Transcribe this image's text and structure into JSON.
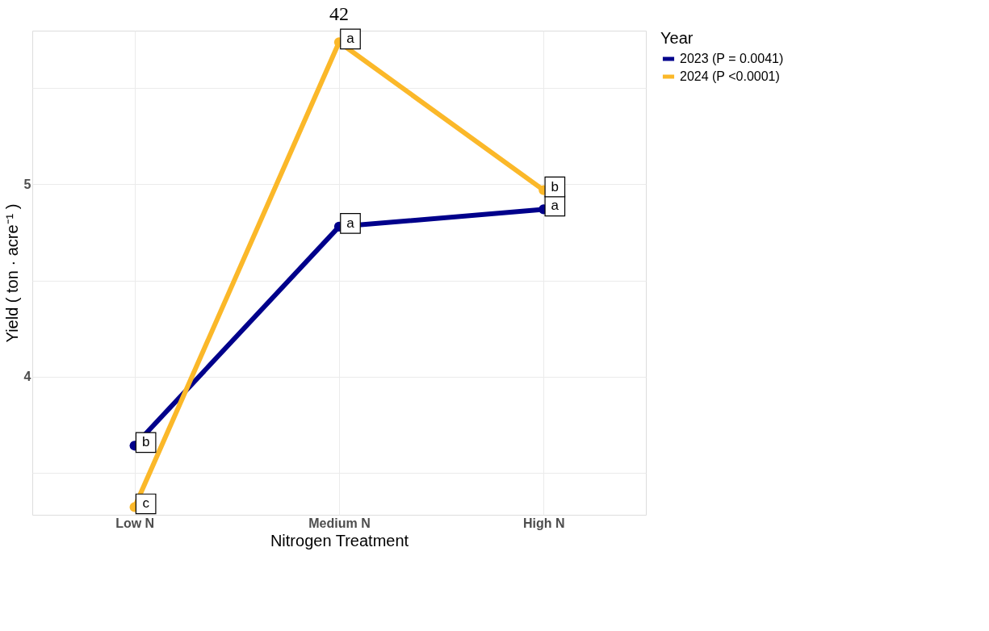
{
  "chart_data": {
    "type": "line",
    "title": "42",
    "xlabel": "Nitrogen Treatment",
    "ylabel": "Yield ( ton · acre⁻¹ )",
    "legend_title": "Year",
    "categories": [
      "Low N",
      "Medium N",
      "High N"
    ],
    "series": [
      {
        "name": "2023 (P = 0.0041)",
        "color": "#00008b",
        "values": [
          3.64,
          4.78,
          4.87
        ]
      },
      {
        "name": "2024 (P <0.0001)",
        "color": "#fbb829",
        "values": [
          3.32,
          5.74,
          4.97
        ]
      }
    ],
    "ylim": [
      3.28,
      5.8
    ],
    "yticks": [
      {
        "value": 3.5,
        "label": null
      },
      4,
      {
        "value": 4.5,
        "label": null
      },
      5,
      {
        "value": 5.5,
        "label": null
      }
    ],
    "annotations": [
      {
        "text": "b",
        "x": "Low N",
        "y": 3.64
      },
      {
        "text": "a",
        "x": "Medium N",
        "y": 4.78
      },
      {
        "text": "a",
        "x": "High N",
        "y": 4.87
      },
      {
        "text": "c",
        "x": "Low N",
        "y": 3.32
      },
      {
        "text": "a",
        "x": "Medium N",
        "y": 5.74
      },
      {
        "text": "b",
        "x": "High N",
        "y": 4.97
      }
    ],
    "grid": true,
    "legend": "right",
    "marker": "circle",
    "line_style": "solid"
  }
}
